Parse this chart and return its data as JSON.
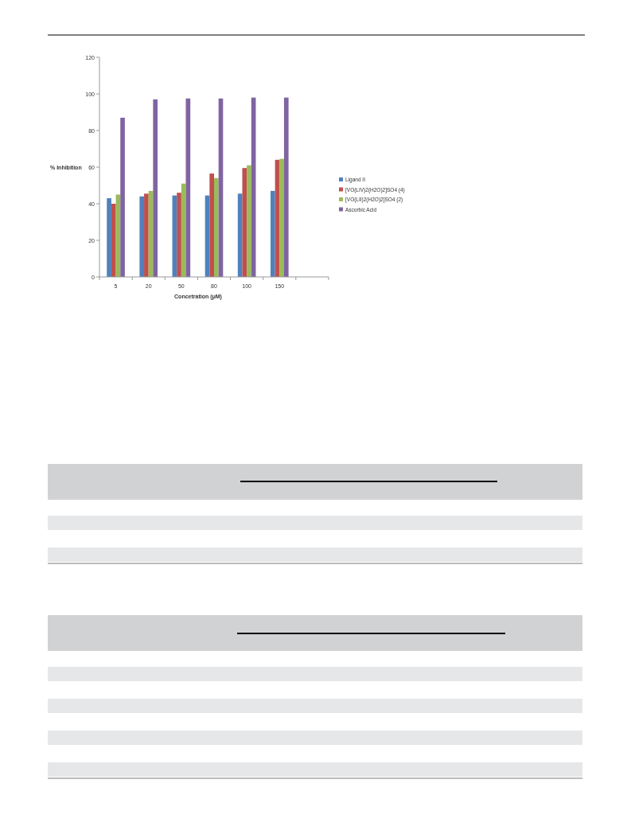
{
  "chart_data": {
    "type": "bar",
    "xlabel": "Concetration (μM)",
    "ylabel": "% Inhibition",
    "categories": [
      "5",
      "20",
      "50",
      "80",
      "100",
      "150",
      null
    ],
    "series": [
      {
        "name": "Ligand II",
        "color": "#4f81bd",
        "values": [
          43,
          44,
          44.5,
          44.5,
          45.5,
          47,
          null
        ]
      },
      {
        "name": "[VO(LIV)2(H2O)2]SO4 (4)",
        "color": "#c0504d",
        "values": [
          40,
          45.5,
          46,
          56.5,
          59.5,
          64,
          null
        ]
      },
      {
        "name": "[VO(LII)2(H2O)2]SO4 (2)",
        "color": "#9bbb59",
        "values": [
          45,
          47,
          51,
          54,
          61,
          64.5,
          null
        ]
      },
      {
        "name": "Ascorbic Acid",
        "color": "#8064a2",
        "values": [
          87,
          97,
          97.5,
          97.5,
          98,
          98,
          null
        ]
      }
    ],
    "ylim": [
      0,
      120
    ],
    "yticks": [
      0,
      20,
      40,
      60,
      80,
      100,
      120
    ],
    "grid": false,
    "legend": "right"
  }
}
